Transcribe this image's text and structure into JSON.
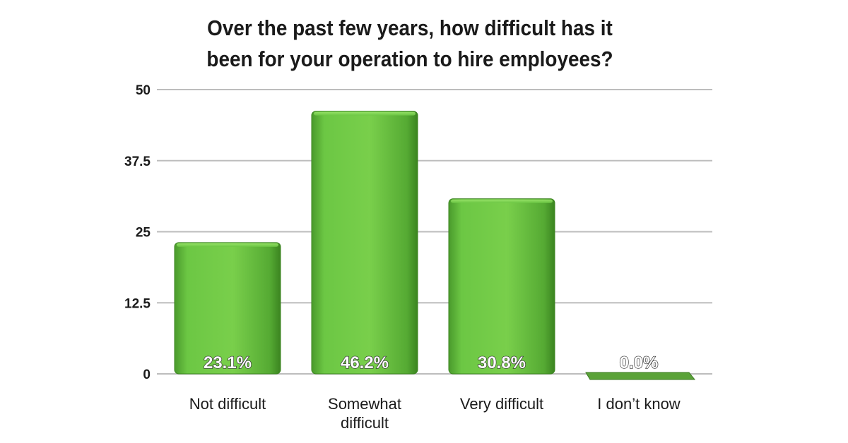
{
  "chart_data": {
    "type": "bar",
    "title_lines": [
      "Over the past few years, how difficult has it",
      "been for your operation to hire employees?"
    ],
    "categories": [
      [
        "Not difficult"
      ],
      [
        "Somewhat",
        "difficult"
      ],
      [
        "Very difficult"
      ],
      [
        "I don’t know"
      ]
    ],
    "values": [
      23.1,
      46.2,
      30.8,
      0.0
    ],
    "data_labels": [
      "23.1%",
      "46.2%",
      "30.8%",
      "0.0%"
    ],
    "yticks": [
      "0",
      "12.5",
      "25",
      "37.5",
      "50"
    ],
    "ylim": [
      0,
      50
    ],
    "grid": true,
    "legend": "none",
    "colors": {
      "bar_light": "#7fd14e",
      "bar_mid": "#5cb83a",
      "bar_dark": "#3f8f24",
      "grid": "#bdbdbd"
    }
  }
}
